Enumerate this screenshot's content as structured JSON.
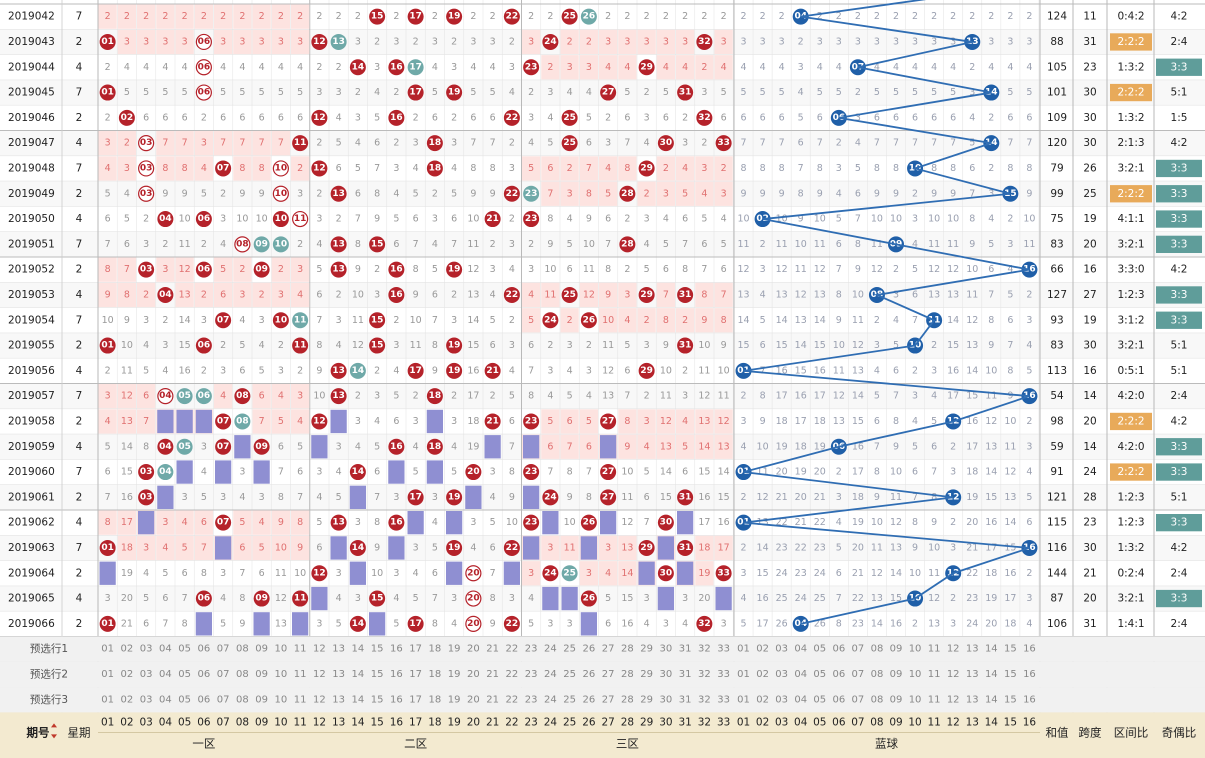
{
  "colors": {
    "red_ball": "#b5222a",
    "blue_ball": "#1f5fa8",
    "teal_ball": "#6fa9a8",
    "miss_bar": "#8f8fd2",
    "hot_cell": "#fde3e0",
    "ratio_orange": "#e8aa5a",
    "ratio_teal": "#5f9d9a",
    "footer_bg": "#f3ead0"
  },
  "columns": {
    "issue": "期号",
    "week": "星期",
    "zones": [
      "一区",
      "二区",
      "三区",
      "蓝球"
    ],
    "sum": "和值",
    "span": "跨度",
    "zone_ratio": "区间比",
    "odd_even": "奇偶比"
  },
  "sort_icon": "sort-arrows-icon",
  "red_numbers": [
    "01",
    "02",
    "03",
    "04",
    "05",
    "06",
    "07",
    "08",
    "09",
    "10",
    "11",
    "12",
    "13",
    "14",
    "15",
    "16",
    "17",
    "18",
    "19",
    "20",
    "21",
    "22",
    "23",
    "24",
    "25",
    "26",
    "27",
    "28",
    "29",
    "30",
    "31",
    "32",
    "33"
  ],
  "blue_numbers": [
    "01",
    "02",
    "03",
    "04",
    "05",
    "06",
    "07",
    "08",
    "09",
    "10",
    "11",
    "12",
    "13",
    "14",
    "15",
    "16"
  ],
  "preselect_rows": [
    "预选行1",
    "预选行2",
    "预选行3"
  ],
  "rows": [
    {
      "issue": "2019042",
      "week": "7",
      "red": [
        15,
        17,
        19,
        22,
        25,
        26
      ],
      "blue": 4,
      "sum": "124",
      "span": "11",
      "zone_ratio": "0:4:2",
      "odd_even": "4:2",
      "zr_hl": "",
      "oe_hl": ""
    },
    {
      "issue": "2019043",
      "week": "2",
      "red": [
        1,
        6,
        12,
        13,
        24,
        32
      ],
      "blue": 13,
      "sum": "88",
      "span": "31",
      "zone_ratio": "2:2:2",
      "odd_even": "2:4",
      "zr_hl": "o",
      "oe_hl": ""
    },
    {
      "issue": "2019044",
      "week": "4",
      "red": [
        6,
        14,
        16,
        17,
        23,
        29
      ],
      "blue": 7,
      "sum": "105",
      "span": "23",
      "zone_ratio": "1:3:2",
      "odd_even": "3:3",
      "zr_hl": "",
      "oe_hl": "t"
    },
    {
      "issue": "2019045",
      "week": "7",
      "red": [
        1,
        6,
        17,
        19,
        27,
        31
      ],
      "blue": 14,
      "sum": "101",
      "span": "30",
      "zone_ratio": "2:2:2",
      "odd_even": "5:1",
      "zr_hl": "o",
      "oe_hl": ""
    },
    {
      "issue": "2019046",
      "week": "2",
      "red": [
        2,
        12,
        16,
        22,
        25,
        32
      ],
      "blue": 6,
      "sum": "109",
      "span": "30",
      "zone_ratio": "1:3:2",
      "odd_even": "1:5",
      "zr_hl": "",
      "oe_hl": ""
    },
    {
      "issue": "2019047",
      "week": "4",
      "red": [
        11,
        18,
        25,
        30,
        33,
        3
      ],
      "blue": 14,
      "sum": "120",
      "span": "30",
      "zone_ratio": "2:1:3",
      "odd_even": "4:2",
      "zr_hl": "",
      "oe_hl": ""
    },
    {
      "issue": "2019048",
      "week": "7",
      "red": [
        3,
        7,
        10,
        12,
        18,
        29
      ],
      "blue": 10,
      "sum": "79",
      "span": "26",
      "zone_ratio": "3:2:1",
      "odd_even": "3:3",
      "zr_hl": "",
      "oe_hl": "t"
    },
    {
      "issue": "2019049",
      "week": "2",
      "red": [
        3,
        10,
        13,
        22,
        23,
        28
      ],
      "blue": 15,
      "sum": "99",
      "span": "25",
      "zone_ratio": "2:2:2",
      "odd_even": "3:3",
      "zr_hl": "o",
      "oe_hl": "t"
    },
    {
      "issue": "2019050",
      "week": "4",
      "red": [
        4,
        6,
        11,
        21,
        23,
        10
      ],
      "blue": 2,
      "sum": "75",
      "span": "19",
      "zone_ratio": "4:1:1",
      "odd_even": "3:3",
      "zr_hl": "",
      "oe_hl": "t"
    },
    {
      "issue": "2019051",
      "week": "7",
      "red": [
        8,
        9,
        10,
        13,
        15,
        28
      ],
      "blue": 9,
      "sum": "83",
      "span": "20",
      "zone_ratio": "3:2:1",
      "odd_even": "3:3",
      "zr_hl": "",
      "oe_hl": "t"
    },
    {
      "issue": "2019052",
      "week": "2",
      "red": [
        3,
        6,
        9,
        13,
        16,
        19
      ],
      "blue": 16,
      "sum": "66",
      "span": "16",
      "zone_ratio": "3:3:0",
      "odd_even": "4:2",
      "zr_hl": "",
      "oe_hl": ""
    },
    {
      "issue": "2019053",
      "week": "4",
      "red": [
        4,
        16,
        22,
        25,
        29,
        31
      ],
      "blue": 8,
      "sum": "127",
      "span": "27",
      "zone_ratio": "1:2:3",
      "odd_even": "3:3",
      "zr_hl": "",
      "oe_hl": "t"
    },
    {
      "issue": "2019054",
      "week": "7",
      "red": [
        7,
        10,
        11,
        15,
        24,
        26
      ],
      "blue": 11,
      "sum": "93",
      "span": "19",
      "zone_ratio": "3:1:2",
      "odd_even": "3:3",
      "zr_hl": "",
      "oe_hl": "t"
    },
    {
      "issue": "2019055",
      "week": "2",
      "red": [
        1,
        6,
        11,
        15,
        19,
        31
      ],
      "blue": 10,
      "sum": "83",
      "span": "30",
      "zone_ratio": "3:2:1",
      "odd_even": "5:1",
      "zr_hl": "",
      "oe_hl": ""
    },
    {
      "issue": "2019056",
      "week": "4",
      "red": [
        13,
        14,
        17,
        19,
        21,
        29
      ],
      "blue": 1,
      "sum": "113",
      "span": "16",
      "zone_ratio": "0:5:1",
      "odd_even": "5:1",
      "zr_hl": "",
      "oe_hl": ""
    },
    {
      "issue": "2019057",
      "week": "7",
      "red": [
        4,
        5,
        6,
        8,
        13,
        18
      ],
      "blue": 16,
      "sum": "54",
      "span": "14",
      "zone_ratio": "4:2:0",
      "odd_even": "2:4",
      "zr_hl": "",
      "oe_hl": ""
    },
    {
      "issue": "2019058",
      "week": "2",
      "red": [
        7,
        8,
        12,
        21,
        23,
        27
      ],
      "blue": 12,
      "sum": "98",
      "span": "20",
      "zone_ratio": "2:2:2",
      "odd_even": "4:2",
      "zr_hl": "o",
      "oe_hl": ""
    },
    {
      "issue": "2019059",
      "week": "4",
      "red": [
        4,
        5,
        7,
        9,
        16,
        18
      ],
      "blue": 6,
      "sum": "59",
      "span": "14",
      "zone_ratio": "4:2:0",
      "odd_even": "3:3",
      "zr_hl": "",
      "oe_hl": "t"
    },
    {
      "issue": "2019060",
      "week": "7",
      "red": [
        3,
        4,
        14,
        20,
        23,
        27
      ],
      "blue": 1,
      "sum": "91",
      "span": "24",
      "zone_ratio": "2:2:2",
      "odd_even": "3:3",
      "zr_hl": "o",
      "oe_hl": "t"
    },
    {
      "issue": "2019061",
      "week": "2",
      "red": [
        3,
        17,
        19,
        24,
        27,
        31
      ],
      "blue": 12,
      "sum": "121",
      "span": "28",
      "zone_ratio": "1:2:3",
      "odd_even": "5:1",
      "zr_hl": "",
      "oe_hl": ""
    },
    {
      "issue": "2019062",
      "week": "4",
      "red": [
        7,
        13,
        16,
        23,
        26,
        30
      ],
      "blue": 1,
      "sum": "115",
      "span": "23",
      "zone_ratio": "1:2:3",
      "odd_even": "3:3",
      "zr_hl": "",
      "oe_hl": "t"
    },
    {
      "issue": "2019063",
      "week": "7",
      "red": [
        1,
        14,
        19,
        22,
        29,
        31
      ],
      "blue": 16,
      "sum": "116",
      "span": "30",
      "zone_ratio": "1:3:2",
      "odd_even": "4:2",
      "zr_hl": "",
      "oe_hl": ""
    },
    {
      "issue": "2019064",
      "week": "2",
      "red": [
        12,
        20,
        24,
        25,
        30,
        33
      ],
      "blue": 12,
      "sum": "144",
      "span": "21",
      "zone_ratio": "0:2:4",
      "odd_even": "2:4",
      "zr_hl": "",
      "oe_hl": ""
    },
    {
      "issue": "2019065",
      "week": "4",
      "red": [
        6,
        11,
        15,
        20,
        26,
        9
      ],
      "blue": 10,
      "sum": "87",
      "span": "20",
      "zone_ratio": "3:2:1",
      "odd_even": "3:3",
      "zr_hl": "",
      "oe_hl": "t"
    },
    {
      "issue": "2019066",
      "week": "2",
      "red": [
        1,
        14,
        17,
        20,
        22,
        32
      ],
      "blue": 4,
      "sum": "106",
      "span": "31",
      "zone_ratio": "1:4:1",
      "odd_even": "2:4",
      "zr_hl": "",
      "oe_hl": ""
    }
  ]
}
